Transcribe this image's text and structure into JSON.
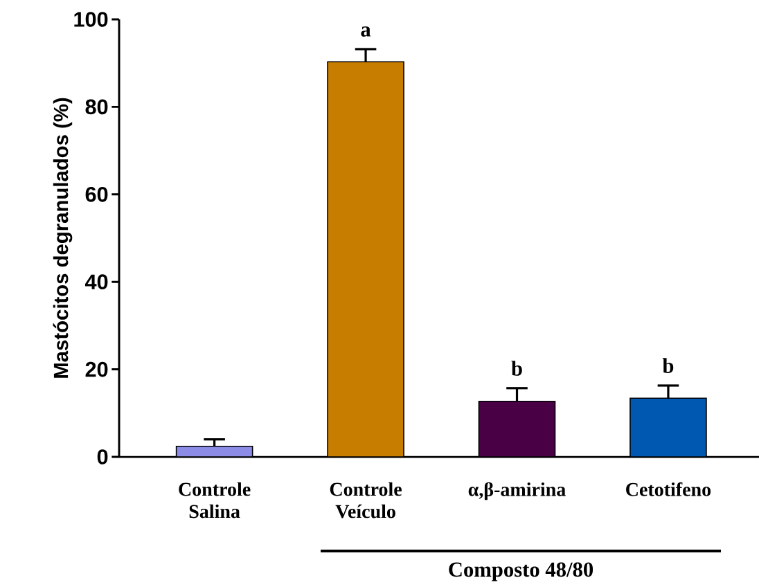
{
  "chart_data": {
    "type": "bar",
    "ylabel": "Mastócitos degranulados (%)",
    "categories": [
      "Controle Salina",
      "Controle Veículo",
      "α,β-amirina",
      "Cetotifeno"
    ],
    "values": [
      2.4,
      90.3,
      12.7,
      13.4
    ],
    "errors": [
      [
        2.4,
        4.0
      ],
      [
        90.3,
        93.2
      ],
      [
        12.7,
        15.7
      ],
      [
        13.4,
        16.3
      ]
    ],
    "colors": [
      "#8c8ce6",
      "#c77d00",
      "#4a0045",
      "#0058b0"
    ],
    "ylim": [
      0,
      100
    ],
    "yticks": [
      0,
      20,
      40,
      60,
      80,
      100
    ],
    "annotations": [
      "a",
      "b",
      "b",
      "Composto 48/80"
    ]
  }
}
